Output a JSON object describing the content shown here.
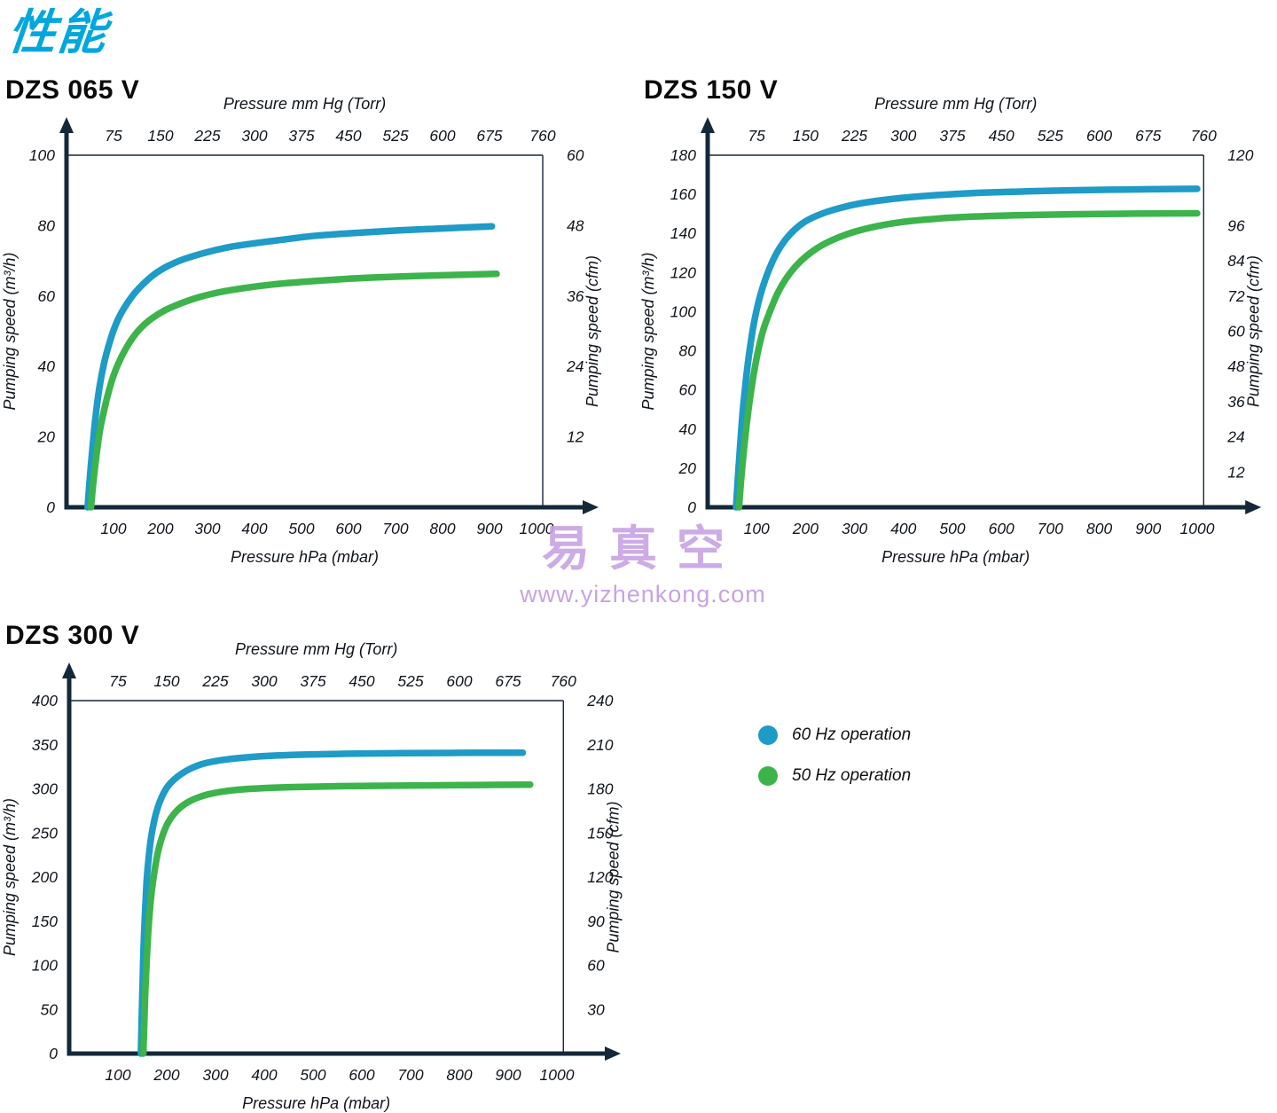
{
  "page": {
    "title": "性能"
  },
  "watermark": {
    "brand": "易真空",
    "url": "www.yizhenkong.com"
  },
  "colors": {
    "axis": "#14283a",
    "blue_60hz": "#1e9bc6",
    "green_50hz": "#3cb44b",
    "accent_title": "#00a7dc",
    "watermark": "#c8a2e0"
  },
  "legend": {
    "items": [
      {
        "label": "60 Hz operation",
        "color": "#1e9bc6"
      },
      {
        "label": "50 Hz operation",
        "color": "#3cb44b"
      }
    ]
  },
  "chart_data": [
    {
      "type": "line",
      "title": "DZS 065 V",
      "top_axis": {
        "label": "Pressure mm Hg (Torr)",
        "ticks": [
          75,
          150,
          225,
          300,
          375,
          450,
          525,
          600,
          675,
          760
        ],
        "hpa_per_torr": 1.33322
      },
      "bottom_axis": {
        "label": "Pressure hPa (mbar)",
        "ticks": [
          100,
          200,
          300,
          400,
          500,
          600,
          700,
          800,
          900,
          1000
        ],
        "max": 1100
      },
      "left_axis": {
        "label": "Pumping speed (m³/h)",
        "ticks": [
          0,
          20,
          40,
          60,
          80,
          100
        ],
        "max": 100
      },
      "right_axis": {
        "label": "Pumping speed (cfm)",
        "ticks": [
          12,
          24,
          36,
          48,
          60
        ],
        "max": 60
      },
      "series": [
        {
          "name": "60 Hz operation",
          "color": "#1e9bc6",
          "points": [
            [
              45,
              0
            ],
            [
              50,
              9
            ],
            [
              56,
              18
            ],
            [
              62,
              26
            ],
            [
              70,
              34
            ],
            [
              80,
              41
            ],
            [
              92,
              47
            ],
            [
              105,
              52
            ],
            [
              120,
              56
            ],
            [
              140,
              60
            ],
            [
              160,
              63
            ],
            [
              185,
              66
            ],
            [
              215,
              68.5
            ],
            [
              250,
              70.5
            ],
            [
              300,
              72.5
            ],
            [
              350,
              74
            ],
            [
              400,
              75
            ],
            [
              460,
              76
            ],
            [
              520,
              77
            ],
            [
              600,
              77.8
            ],
            [
              700,
              78.6
            ],
            [
              800,
              79.2
            ],
            [
              905,
              79.8
            ]
          ]
        },
        {
          "name": "50 Hz operation",
          "color": "#3cb44b",
          "points": [
            [
              52,
              0
            ],
            [
              57,
              7
            ],
            [
              63,
              14
            ],
            [
              70,
              21
            ],
            [
              79,
              27
            ],
            [
              90,
              33
            ],
            [
              103,
              38.5
            ],
            [
              118,
              43
            ],
            [
              135,
              47
            ],
            [
              155,
              50.5
            ],
            [
              180,
              53.5
            ],
            [
              210,
              56
            ],
            [
              245,
              58
            ],
            [
              285,
              59.8
            ],
            [
              330,
              61.2
            ],
            [
              380,
              62.3
            ],
            [
              440,
              63.3
            ],
            [
              510,
              64.1
            ],
            [
              600,
              64.9
            ],
            [
              700,
              65.5
            ],
            [
              800,
              65.9
            ],
            [
              915,
              66.3
            ]
          ]
        }
      ]
    },
    {
      "type": "line",
      "title": "DZS 150 V",
      "top_axis": {
        "label": "Pressure mm Hg (Torr)",
        "ticks": [
          75,
          150,
          225,
          300,
          375,
          450,
          525,
          600,
          675,
          760
        ],
        "hpa_per_torr": 1.33322
      },
      "bottom_axis": {
        "label": "Pressure hPa (mbar)",
        "ticks": [
          100,
          200,
          300,
          400,
          500,
          600,
          700,
          800,
          900,
          1000
        ],
        "max": 1100
      },
      "left_axis": {
        "label": "Pumping speed (m³/h)",
        "ticks": [
          0,
          20,
          40,
          60,
          80,
          100,
          120,
          140,
          160,
          180
        ],
        "max": 180
      },
      "right_axis": {
        "label": "Pumping speed (cfm)",
        "ticks": [
          12,
          24,
          36,
          48,
          60,
          72,
          84,
          96,
          120
        ],
        "max": 120
      },
      "series": [
        {
          "name": "60 Hz operation",
          "color": "#1e9bc6",
          "points": [
            [
              58,
              0
            ],
            [
              62,
              16
            ],
            [
              67,
              34
            ],
            [
              72,
              50
            ],
            [
              78,
              65
            ],
            [
              85,
              79
            ],
            [
              93,
              92
            ],
            [
              102,
              103
            ],
            [
              113,
              113
            ],
            [
              126,
              122
            ],
            [
              141,
              130
            ],
            [
              158,
              136.5
            ],
            [
              178,
              142
            ],
            [
              202,
              146.5
            ],
            [
              232,
              150
            ],
            [
              270,
              153
            ],
            [
              315,
              155.5
            ],
            [
              365,
              157.3
            ],
            [
              420,
              158.7
            ],
            [
              480,
              159.8
            ],
            [
              560,
              160.8
            ],
            [
              660,
              161.6
            ],
            [
              780,
              162.2
            ],
            [
              900,
              162.6
            ],
            [
              1000,
              162.8
            ]
          ]
        },
        {
          "name": "50 Hz operation",
          "color": "#3cb44b",
          "points": [
            [
              64,
              0
            ],
            [
              68,
              13
            ],
            [
              73,
              27
            ],
            [
              79,
              41
            ],
            [
              86,
              55
            ],
            [
              94,
              68
            ],
            [
              103,
              80
            ],
            [
              114,
              91
            ],
            [
              127,
              100
            ],
            [
              142,
              109
            ],
            [
              159,
              116.5
            ],
            [
              179,
              123
            ],
            [
              202,
              128.5
            ],
            [
              230,
              133.5
            ],
            [
              263,
              137.5
            ],
            [
              302,
              141
            ],
            [
              348,
              143.8
            ],
            [
              402,
              146
            ],
            [
              465,
              147.5
            ],
            [
              540,
              148.6
            ],
            [
              630,
              149.3
            ],
            [
              740,
              149.8
            ],
            [
              870,
              150.1
            ],
            [
              1000,
              150.3
            ]
          ]
        }
      ]
    },
    {
      "type": "line",
      "title": "DZS 300 V",
      "top_axis": {
        "label": "Pressure mm Hg (Torr)",
        "ticks": [
          75,
          150,
          225,
          300,
          375,
          450,
          525,
          600,
          675,
          760
        ],
        "hpa_per_torr": 1.33322
      },
      "bottom_axis": {
        "label": "Pressure hPa (mbar)",
        "ticks": [
          100,
          200,
          300,
          400,
          500,
          600,
          700,
          800,
          900,
          1000
        ],
        "max": 1100
      },
      "left_axis": {
        "label": "Pumping speed (m³/h)",
        "ticks": [
          0,
          50,
          100,
          150,
          200,
          250,
          300,
          350,
          400
        ],
        "max": 400
      },
      "right_axis": {
        "label": "Pumping speed (cfm)",
        "ticks": [
          30,
          60,
          90,
          120,
          150,
          180,
          210,
          240
        ],
        "max": 240
      },
      "series": [
        {
          "name": "60 Hz operation",
          "color": "#1e9bc6",
          "points": [
            [
              147,
              0
            ],
            [
              149,
              45
            ],
            [
              151,
              90
            ],
            [
              153,
              128
            ],
            [
              156,
              165
            ],
            [
              159,
              196
            ],
            [
              163,
              222
            ],
            [
              168,
              245
            ],
            [
              174,
              263
            ],
            [
              181,
              278
            ],
            [
              190,
              291
            ],
            [
              201,
              302
            ],
            [
              214,
              310
            ],
            [
              230,
              317
            ],
            [
              249,
              323
            ],
            [
              272,
              328
            ],
            [
              300,
              331.5
            ],
            [
              335,
              334.2
            ],
            [
              375,
              336.2
            ],
            [
              425,
              337.8
            ],
            [
              490,
              339
            ],
            [
              570,
              339.8
            ],
            [
              680,
              340.4
            ],
            [
              800,
              340.8
            ],
            [
              930,
              341
            ]
          ]
        },
        {
          "name": "50 Hz operation",
          "color": "#3cb44b",
          "points": [
            [
              152,
              0
            ],
            [
              154,
              35
            ],
            [
              156,
              70
            ],
            [
              159,
              105
            ],
            [
              162,
              137
            ],
            [
              166,
              166
            ],
            [
              171,
              192
            ],
            [
              177,
              214
            ],
            [
              184,
              233
            ],
            [
              192,
              248
            ],
            [
              202,
              261
            ],
            [
              214,
              271
            ],
            [
              229,
              279.5
            ],
            [
              247,
              286
            ],
            [
              268,
              291
            ],
            [
              293,
              294.8
            ],
            [
              323,
              297.6
            ],
            [
              360,
              299.6
            ],
            [
              405,
              301
            ],
            [
              460,
              302
            ],
            [
              530,
              302.8
            ],
            [
              620,
              303.4
            ],
            [
              730,
              303.9
            ],
            [
              850,
              304.4
            ],
            [
              945,
              304.8
            ]
          ]
        }
      ]
    }
  ]
}
